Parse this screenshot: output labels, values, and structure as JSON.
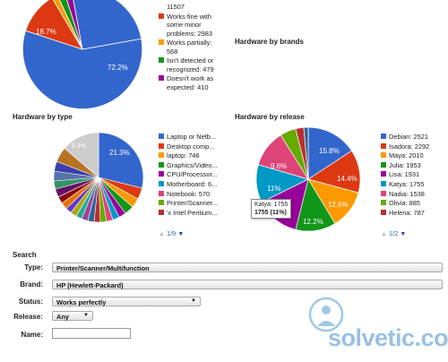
{
  "status_chart": {
    "top_count": "11507",
    "legend": [
      {
        "label_lines": [
          "Works fine with",
          "some minor",
          "problems: 2983"
        ],
        "color": "#dc3912"
      },
      {
        "label_lines": [
          "Works partially:",
          "568"
        ],
        "color": "#ff9900"
      },
      {
        "label_lines": [
          "Isn't detected or",
          "recognized: 479"
        ],
        "color": "#109618"
      },
      {
        "label_lines": [
          "Doesn't work as",
          "expected: 410"
        ],
        "color": "#990099"
      }
    ],
    "slice_labels": [
      "72.2%",
      "18.7%"
    ]
  },
  "brands_title": "Hardware by brands",
  "type_chart": {
    "title": "Hardware by type",
    "legend": [
      {
        "label": "Laptop or Netb...",
        "color": "#3366cc"
      },
      {
        "label": "Desktop comp...",
        "color": "#dc3912"
      },
      {
        "label": "laptop: 746",
        "color": "#ff9900"
      },
      {
        "label": "Graphics/Video...",
        "color": "#109618"
      },
      {
        "label": "CPU/Processor...",
        "color": "#990099"
      },
      {
        "label": "Motherboard: 6...",
        "color": "#0099c6"
      },
      {
        "label": "Notebook: 570",
        "color": "#dd4477"
      },
      {
        "label": "Printer/Scanner...",
        "color": "#66aa00"
      },
      {
        "label": "'x Intel Pentium...",
        "color": "#b82e2e"
      }
    ],
    "pager": "1/9",
    "slice_labels": [
      "21.3%",
      "8.3%"
    ]
  },
  "release_chart": {
    "title": "Hardware by release",
    "legend": [
      {
        "label": "Debian: 2521",
        "color": "#3366cc"
      },
      {
        "label": "Isadora: 2292",
        "color": "#dc3912"
      },
      {
        "label": "Maya: 2010",
        "color": "#ff9900"
      },
      {
        "label": "Julia: 1953",
        "color": "#109618"
      },
      {
        "label": "Lisa: 1931",
        "color": "#990099"
      },
      {
        "label": "Katya: 1755",
        "color": "#0099c6"
      },
      {
        "label": "Nadia: 1538",
        "color": "#dd4477"
      },
      {
        "label": "Olivia: 885",
        "color": "#66aa00"
      },
      {
        "label": "Helena: 787",
        "color": "#b82e2e"
      }
    ],
    "pager": "1/2",
    "slice_labels": [
      "15.8%",
      "14.4%",
      "12.6%",
      "12.2%",
      "11%",
      "9.6%"
    ],
    "tooltip": {
      "line1": "Katya: 1755",
      "line2": "1755 (11%)"
    }
  },
  "search": {
    "title": "Search",
    "type_label": "Type:",
    "type_value": "Printer/Scanner/Multifunction",
    "brand_label": "Brand:",
    "brand_value": "HP (Hewlett-Packard)",
    "status_label": "Status:",
    "status_value": "Works perfectly",
    "release_label": "Release:",
    "release_value": "Any",
    "name_label": "Name:",
    "name_value": ""
  },
  "watermark": "solvetic.com"
}
